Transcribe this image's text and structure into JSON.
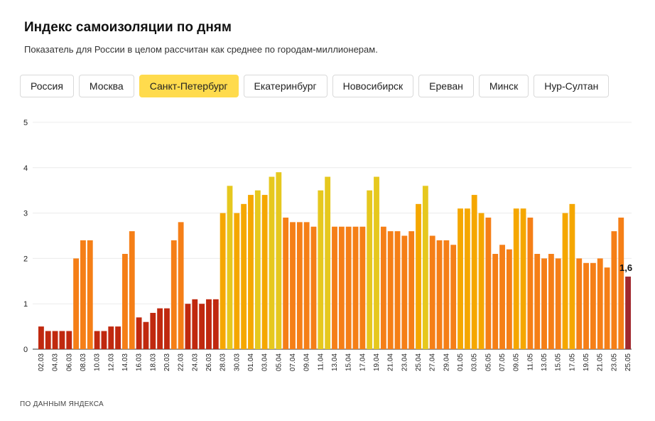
{
  "header": {
    "title": "Индекс самоизоляции по дням",
    "subtitle": "Показатель для России в целом рассчитан как среднее по городам-миллионерам."
  },
  "tabs": [
    {
      "label": "Россия",
      "active": false
    },
    {
      "label": "Москва",
      "active": false
    },
    {
      "label": "Санкт-Петербург",
      "active": true
    },
    {
      "label": "Екатеринбург",
      "active": false
    },
    {
      "label": "Новосибирск",
      "active": false
    },
    {
      "label": "Ереван",
      "active": false
    },
    {
      "label": "Минск",
      "active": false
    },
    {
      "label": "Нур-Султан",
      "active": false
    }
  ],
  "footer": {
    "source": "ПО ДАННЫМ ЯНДЕКСА"
  },
  "colors": {
    "accent": "#ffdb4d",
    "low": "#c0290f",
    "mid": "#f57f17",
    "high": "#f5a700",
    "top": "#e6c81e",
    "latest": "#a0282e"
  },
  "chart_data": {
    "type": "bar",
    "ylim": [
      0,
      5
    ],
    "yticks": [
      0,
      1,
      2,
      3,
      4,
      5
    ],
    "grid": true,
    "categories": [
      "02.03",
      "03.03",
      "04.03",
      "05.03",
      "06.03",
      "07.03",
      "08.03",
      "09.03",
      "10.03",
      "11.03",
      "12.03",
      "13.03",
      "14.03",
      "15.03",
      "16.03",
      "17.03",
      "18.03",
      "19.03",
      "20.03",
      "21.03",
      "22.03",
      "23.03",
      "24.03",
      "25.03",
      "26.03",
      "27.03",
      "28.03",
      "29.03",
      "30.03",
      "31.03",
      "01.04",
      "02.04",
      "03.04",
      "04.04",
      "05.04",
      "06.04",
      "07.04",
      "08.04",
      "09.04",
      "10.04",
      "11.04",
      "12.04",
      "13.04",
      "14.04",
      "15.04",
      "16.04",
      "17.04",
      "18.04",
      "19.04",
      "20.04",
      "21.04",
      "22.04",
      "23.04",
      "24.04",
      "25.04",
      "26.04",
      "27.04",
      "28.04",
      "29.04",
      "30.04",
      "01.05",
      "02.05",
      "03.05",
      "04.05",
      "05.05",
      "06.05",
      "07.05",
      "08.05",
      "09.05",
      "10.05",
      "11.05",
      "12.05",
      "13.05",
      "14.05",
      "15.05",
      "16.05",
      "17.05",
      "18.05",
      "19.05",
      "20.05",
      "21.05",
      "22.05",
      "23.05",
      "24.05",
      "25.05"
    ],
    "xtick_labels": [
      "02.03",
      "04.03",
      "06.03",
      "08.03",
      "10.03",
      "12.03",
      "14.03",
      "16.03",
      "18.03",
      "20.03",
      "22.03",
      "24.03",
      "26.03",
      "28.03",
      "30.03",
      "01.04",
      "03.04",
      "05.04",
      "07.04",
      "09.04",
      "11.04",
      "13.04",
      "15.04",
      "17.04",
      "19.04",
      "21.04",
      "23.04",
      "25.04",
      "27.04",
      "29.04",
      "01.05",
      "03.05",
      "05.05",
      "07.05",
      "09.05",
      "11.05",
      "13.05",
      "15.05",
      "17.05",
      "19.05",
      "21.05",
      "23.05",
      "25.05"
    ],
    "values": [
      0.5,
      0.4,
      0.4,
      0.4,
      0.4,
      2.0,
      2.4,
      2.4,
      0.4,
      0.4,
      0.5,
      0.5,
      2.1,
      2.6,
      0.7,
      0.6,
      0.8,
      0.9,
      0.9,
      2.4,
      2.8,
      1.0,
      1.1,
      1.0,
      1.1,
      1.1,
      3.0,
      3.6,
      3.0,
      3.2,
      3.4,
      3.5,
      3.4,
      3.8,
      3.9,
      2.9,
      2.8,
      2.8,
      2.8,
      2.7,
      3.5,
      3.8,
      2.7,
      2.7,
      2.7,
      2.7,
      2.7,
      3.5,
      3.8,
      2.7,
      2.6,
      2.6,
      2.5,
      2.6,
      3.2,
      3.6,
      2.5,
      2.4,
      2.4,
      2.3,
      3.1,
      3.1,
      3.4,
      3.0,
      2.9,
      2.1,
      2.3,
      2.2,
      3.1,
      3.1,
      2.9,
      2.1,
      2.0,
      2.1,
      2.0,
      3.0,
      3.2,
      2.0,
      1.9,
      1.9,
      2.0,
      1.8,
      2.6,
      2.9,
      1.6
    ],
    "last_value_label": "1,6"
  }
}
